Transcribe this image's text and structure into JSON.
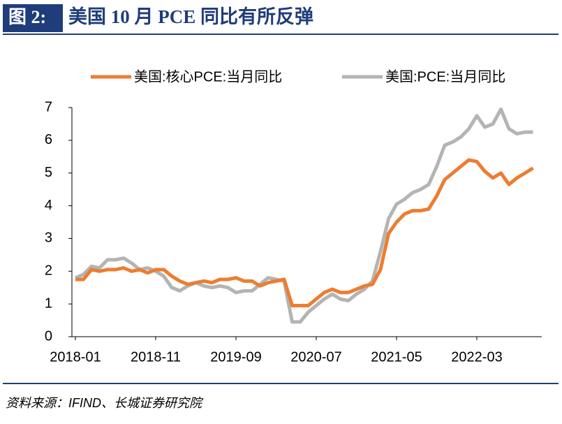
{
  "figure_label": "图 2:",
  "title": "美国 10 月 PCE 同比有所反弹",
  "source": "资料来源：IFIND、长城证券研究院",
  "chart_data": {
    "type": "line",
    "categories": [
      "2018-01",
      null,
      null,
      null,
      null,
      null,
      null,
      null,
      null,
      null,
      "2018-11",
      null,
      null,
      null,
      null,
      null,
      null,
      null,
      null,
      null,
      "2019-09",
      null,
      null,
      null,
      null,
      null,
      null,
      null,
      null,
      null,
      "2020-07",
      null,
      null,
      null,
      null,
      null,
      null,
      null,
      null,
      null,
      "2021-05",
      null,
      null,
      null,
      null,
      null,
      null,
      null,
      null,
      null,
      "2022-03",
      null,
      null,
      null,
      null,
      null,
      null,
      null
    ],
    "series": [
      {
        "name": "美国:核心PCE:当月同比",
        "color": "#ed7d31",
        "values": [
          1.75,
          1.75,
          2.05,
          2.0,
          2.05,
          2.05,
          2.1,
          2.0,
          2.05,
          1.95,
          2.05,
          2.05,
          1.85,
          1.7,
          1.6,
          1.65,
          1.7,
          1.65,
          1.75,
          1.75,
          1.8,
          1.7,
          1.7,
          1.55,
          1.65,
          1.7,
          1.75,
          0.95,
          0.95,
          0.95,
          1.15,
          1.35,
          1.45,
          1.35,
          1.35,
          1.45,
          1.55,
          1.6,
          2.05,
          3.15,
          3.5,
          3.75,
          3.85,
          3.85,
          3.9,
          4.3,
          4.8,
          5.0,
          5.2,
          5.4,
          5.35,
          5.05,
          4.85,
          5.0,
          4.65,
          4.85,
          5.0,
          5.15
        ]
      },
      {
        "name": "美国:PCE:当月同比",
        "color": "#b4b4b4",
        "values": [
          1.8,
          1.9,
          2.15,
          2.1,
          2.35,
          2.35,
          2.4,
          2.25,
          2.05,
          2.1,
          2.0,
          1.85,
          1.5,
          1.4,
          1.55,
          1.65,
          1.55,
          1.5,
          1.55,
          1.5,
          1.35,
          1.4,
          1.4,
          1.6,
          1.8,
          1.75,
          1.7,
          0.45,
          0.45,
          0.75,
          0.95,
          1.15,
          1.3,
          1.15,
          1.1,
          1.3,
          1.45,
          1.7,
          2.6,
          3.6,
          4.05,
          4.2,
          4.4,
          4.5,
          4.65,
          5.2,
          5.85,
          5.95,
          6.1,
          6.35,
          6.75,
          6.4,
          6.5,
          6.95,
          6.35,
          6.2,
          6.25,
          6.25
        ]
      }
    ],
    "ylim": [
      0,
      7
    ],
    "yticks": [
      0,
      1,
      2,
      3,
      4,
      5,
      6,
      7
    ],
    "grid": false
  }
}
